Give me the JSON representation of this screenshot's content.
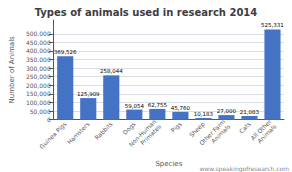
{
  "chart_data": {
    "type": "bar",
    "title": "Types of animals used in research 2014",
    "xlabel": "Species",
    "ylabel": "Number of Animals",
    "categories": [
      "Guinea Pigs",
      "Hamsters",
      "Rabbits",
      "Dogs",
      "Non-Human\nPrimates",
      "Pigs",
      "Sheep",
      "Other Farm\nAnimals",
      "Cats",
      "All Other\nAnimals"
    ],
    "values": [
      369526,
      125909,
      258044,
      59054,
      62755,
      45760,
      10183,
      27000,
      21083,
      525331
    ],
    "value_labels": [
      "369,526",
      "125,909",
      "258,044",
      "59,054",
      "62,755",
      "45,760",
      "10,183",
      "27,000",
      "21,083",
      "525,331"
    ],
    "data_labels": true,
    "color": "#4472C4",
    "ylim": [
      0,
      580000
    ],
    "yticks": [
      0,
      {
        "value": 50000,
        "label": "50,000"
      },
      {
        "value": 100000,
        "label": "100,000"
      },
      {
        "value": 150000,
        "label": "150,000"
      },
      {
        "value": 200000,
        "label": "200,000"
      },
      {
        "value": 250000,
        "label": "250,000"
      },
      {
        "value": 300000,
        "label": "300,000"
      },
      {
        "value": 350000,
        "label": "350,000"
      },
      {
        "value": 400000,
        "label": "400,000"
      },
      {
        "value": 450000,
        "label": "450,000"
      },
      {
        "value": 500000,
        "label": "500,000"
      }
    ],
    "grid": true,
    "annotations": [
      "www.speakingofresearch.com"
    ]
  }
}
